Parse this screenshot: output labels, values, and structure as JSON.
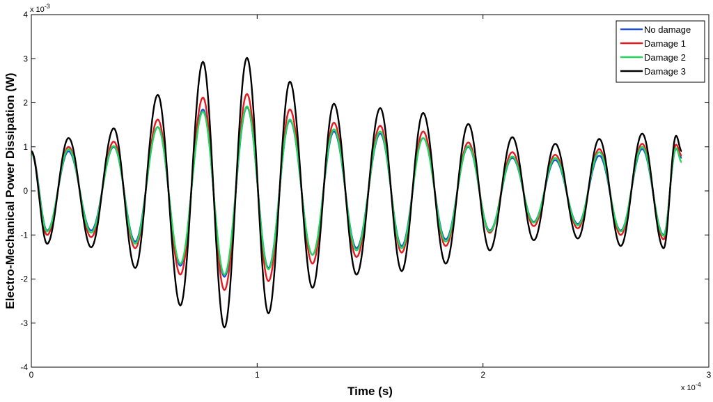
{
  "chart_data": {
    "type": "line",
    "xlabel": "Time (s)",
    "ylabel": "Electro-Mechanical Power Dissipation (W)",
    "x_multiplier_label": "x 10",
    "x_multiplier_exp": "-4",
    "y_multiplier_label": "x 10",
    "y_multiplier_exp": "-3",
    "xlim": [
      0,
      3
    ],
    "ylim": [
      -4,
      4
    ],
    "x_ticks": [
      0,
      1,
      2,
      3
    ],
    "x_tick_labels": [
      "0",
      "1",
      "2",
      "3"
    ],
    "y_ticks": [
      -4,
      -3,
      -2,
      -1,
      0,
      1,
      2,
      3,
      4
    ],
    "y_tick_labels": [
      "-4",
      "-3",
      "-2",
      "-1",
      "0",
      "1",
      "2",
      "3",
      "4"
    ],
    "grid": false,
    "legend_position": "top-right",
    "x_end": 2.88,
    "series": [
      {
        "name": "No damage",
        "color": "#1f4fd6",
        "points": [
          [
            0.0,
            0.9
          ],
          [
            0.07,
            -0.9
          ],
          [
            0.165,
            0.9
          ],
          [
            0.265,
            -0.9
          ],
          [
            0.365,
            1.0
          ],
          [
            0.46,
            -1.15
          ],
          [
            0.56,
            1.45
          ],
          [
            0.66,
            -1.7
          ],
          [
            0.76,
            1.85
          ],
          [
            0.855,
            -1.95
          ],
          [
            0.955,
            1.9
          ],
          [
            1.05,
            -1.75
          ],
          [
            1.145,
            1.6
          ],
          [
            1.245,
            -1.45
          ],
          [
            1.34,
            1.35
          ],
          [
            1.44,
            -1.3
          ],
          [
            1.545,
            1.3
          ],
          [
            1.64,
            -1.25
          ],
          [
            1.735,
            1.2
          ],
          [
            1.835,
            -1.1
          ],
          [
            1.935,
            1.0
          ],
          [
            2.03,
            -0.9
          ],
          [
            2.13,
            0.75
          ],
          [
            2.225,
            -0.7
          ],
          [
            2.32,
            0.7
          ],
          [
            2.42,
            -0.75
          ],
          [
            2.515,
            0.8
          ],
          [
            2.61,
            -0.9
          ],
          [
            2.705,
            0.95
          ],
          [
            2.8,
            -1.0
          ],
          [
            2.855,
            0.95
          ],
          [
            2.88,
            0.75
          ]
        ]
      },
      {
        "name": "Damage 1",
        "color": "#e8191d",
        "points": [
          [
            0.0,
            0.9
          ],
          [
            0.07,
            -1.0
          ],
          [
            0.165,
            1.0
          ],
          [
            0.265,
            -1.05
          ],
          [
            0.365,
            1.12
          ],
          [
            0.46,
            -1.3
          ],
          [
            0.56,
            1.62
          ],
          [
            0.66,
            -1.9
          ],
          [
            0.76,
            2.12
          ],
          [
            0.855,
            -2.25
          ],
          [
            0.955,
            2.2
          ],
          [
            1.05,
            -2.05
          ],
          [
            1.145,
            1.85
          ],
          [
            1.245,
            -1.65
          ],
          [
            1.34,
            1.55
          ],
          [
            1.44,
            -1.5
          ],
          [
            1.545,
            1.48
          ],
          [
            1.64,
            -1.4
          ],
          [
            1.735,
            1.35
          ],
          [
            1.835,
            -1.25
          ],
          [
            1.935,
            1.1
          ],
          [
            2.03,
            -0.95
          ],
          [
            2.13,
            0.88
          ],
          [
            2.225,
            -0.8
          ],
          [
            2.32,
            0.82
          ],
          [
            2.42,
            -0.85
          ],
          [
            2.515,
            0.95
          ],
          [
            2.61,
            -1.0
          ],
          [
            2.705,
            1.07
          ],
          [
            2.8,
            -1.1
          ],
          [
            2.855,
            1.05
          ],
          [
            2.88,
            0.8
          ]
        ]
      },
      {
        "name": "Damage 2",
        "color": "#22d85a",
        "points": [
          [
            0.0,
            0.85
          ],
          [
            0.07,
            -0.92
          ],
          [
            0.165,
            0.95
          ],
          [
            0.265,
            -0.95
          ],
          [
            0.365,
            1.02
          ],
          [
            0.46,
            -1.2
          ],
          [
            0.56,
            1.45
          ],
          [
            0.66,
            -1.65
          ],
          [
            0.76,
            1.8
          ],
          [
            0.855,
            -1.9
          ],
          [
            0.955,
            1.92
          ],
          [
            1.05,
            -1.78
          ],
          [
            1.145,
            1.62
          ],
          [
            1.245,
            -1.45
          ],
          [
            1.34,
            1.4
          ],
          [
            1.44,
            -1.35
          ],
          [
            1.545,
            1.35
          ],
          [
            1.64,
            -1.3
          ],
          [
            1.735,
            1.2
          ],
          [
            1.835,
            -1.15
          ],
          [
            1.935,
            1.02
          ],
          [
            2.03,
            -0.92
          ],
          [
            2.13,
            0.78
          ],
          [
            2.225,
            -0.72
          ],
          [
            2.32,
            0.75
          ],
          [
            2.42,
            -0.78
          ],
          [
            2.515,
            0.88
          ],
          [
            2.61,
            -0.92
          ],
          [
            2.705,
            1.0
          ],
          [
            2.8,
            -1.02
          ],
          [
            2.855,
            0.97
          ],
          [
            2.88,
            0.65
          ]
        ]
      },
      {
        "name": "Damage 3",
        "color": "#000000",
        "points": [
          [
            0.0,
            0.9
          ],
          [
            0.07,
            -1.2
          ],
          [
            0.165,
            1.2
          ],
          [
            0.265,
            -1.28
          ],
          [
            0.365,
            1.42
          ],
          [
            0.46,
            -1.75
          ],
          [
            0.56,
            2.18
          ],
          [
            0.66,
            -2.6
          ],
          [
            0.76,
            2.93
          ],
          [
            0.855,
            -3.1
          ],
          [
            0.955,
            3.02
          ],
          [
            1.05,
            -2.78
          ],
          [
            1.145,
            2.48
          ],
          [
            1.245,
            -2.2
          ],
          [
            1.34,
            1.98
          ],
          [
            1.44,
            -1.9
          ],
          [
            1.545,
            1.88
          ],
          [
            1.64,
            -1.82
          ],
          [
            1.735,
            1.77
          ],
          [
            1.835,
            -1.65
          ],
          [
            1.935,
            1.52
          ],
          [
            2.03,
            -1.35
          ],
          [
            2.13,
            1.22
          ],
          [
            2.225,
            -1.12
          ],
          [
            2.32,
            1.07
          ],
          [
            2.42,
            -1.08
          ],
          [
            2.515,
            1.18
          ],
          [
            2.61,
            -1.25
          ],
          [
            2.705,
            1.3
          ],
          [
            2.8,
            -1.3
          ],
          [
            2.855,
            1.25
          ],
          [
            2.88,
            0.9
          ]
        ]
      }
    ]
  }
}
